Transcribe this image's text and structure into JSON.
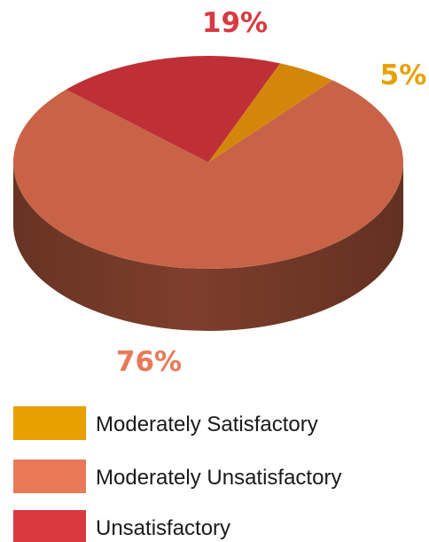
{
  "chart_data": {
    "type": "pie",
    "style": "3d",
    "labels": [
      "Moderately Satisfactory",
      "Moderately Unsatisfactory",
      "Unsatisfactory"
    ],
    "values": [
      5,
      76,
      19
    ],
    "value_labels": [
      "5%",
      "76%",
      "19%"
    ],
    "colors": [
      "#D4860B",
      "#C96347",
      "#BE2F36"
    ],
    "legend_colors": [
      "#E8A000",
      "#E87A5A",
      "#D83A40"
    ],
    "label_colors": [
      "#E8A000",
      "#E87A5A",
      "#D83A40"
    ],
    "side_colors": [
      "#8E5A12",
      "#7E3E2B",
      "#7A1F24"
    ],
    "legend_position": "bottom-left"
  }
}
